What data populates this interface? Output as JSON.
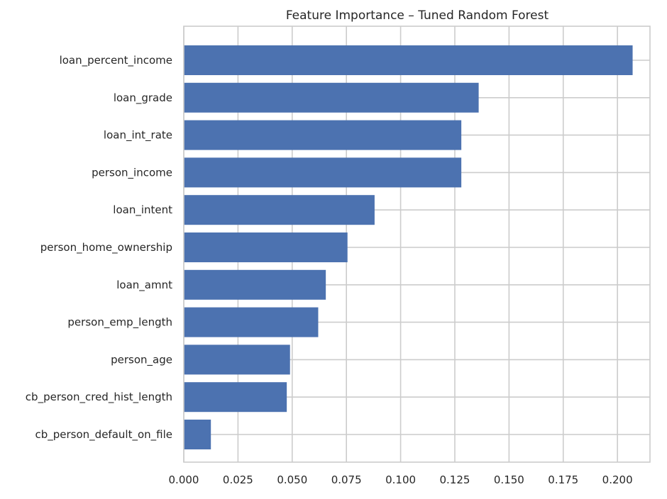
{
  "chart_data": {
    "type": "bar",
    "orientation": "horizontal",
    "title": "Feature Importance – Tuned Random Forest",
    "xlabel": "",
    "ylabel": "",
    "categories": [
      "loan_percent_income",
      "loan_grade",
      "loan_int_rate",
      "person_income",
      "loan_intent",
      "person_home_ownership",
      "loan_amnt",
      "person_emp_length",
      "person_age",
      "cb_person_cred_hist_length",
      "cb_person_default_on_file"
    ],
    "values": [
      0.207,
      0.136,
      0.128,
      0.128,
      0.088,
      0.0755,
      0.0655,
      0.062,
      0.049,
      0.0475,
      0.0125
    ],
    "xlim": [
      0.0,
      0.215
    ],
    "xticks": [
      "0.000",
      "0.025",
      "0.050",
      "0.075",
      "0.100",
      "0.125",
      "0.150",
      "0.175",
      "0.200"
    ],
    "grid": true,
    "legend": "none",
    "colors": {
      "bar": "#4c72b0",
      "grid": "#cccccc",
      "text": "#262626",
      "background": "#ffffff"
    }
  }
}
